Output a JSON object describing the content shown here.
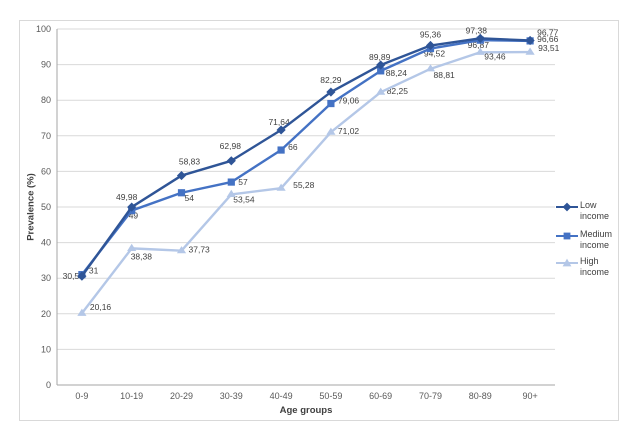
{
  "chart_data": {
    "type": "line",
    "title": "",
    "xlabel": "Age groups",
    "ylabel": "Prevalence (%)",
    "ylim": [
      0,
      100
    ],
    "ytick_step": 10,
    "grid": true,
    "legend_position": "right",
    "decimal_separator": ",",
    "categories": [
      "0-9",
      "10-19",
      "20-29",
      "30-39",
      "40-49",
      "50-59",
      "60-69",
      "70-79",
      "80-89",
      "90+"
    ],
    "series": [
      {
        "name": "Low income",
        "color": "#2F5597",
        "marker": "diamond",
        "values": [
          30.58,
          49.98,
          58.83,
          62.98,
          71.64,
          82.29,
          89.89,
          95.36,
          97.38,
          96.77
        ],
        "labels": [
          "30,58",
          "49,98",
          "58,83",
          "62,98",
          "71,64",
          "82,29",
          "89,89",
          "95,36",
          "97,38",
          "96,77"
        ],
        "label_pos": [
          {
            "dx": 2,
            "dy": 3,
            "anchor": "end"
          },
          {
            "dx": -5,
            "dy": -7,
            "anchor": "middle"
          },
          {
            "dx": 8,
            "dy": -11,
            "anchor": "middle"
          },
          {
            "dx": -1,
            "dy": -12,
            "anchor": "middle"
          },
          {
            "dx": -2,
            "dy": -5,
            "anchor": "middle"
          },
          {
            "dx": 0,
            "dy": -9,
            "anchor": "middle"
          },
          {
            "dx": -1,
            "dy": -5,
            "anchor": "middle"
          },
          {
            "dx": 0,
            "dy": -8,
            "anchor": "middle"
          },
          {
            "dx": -4,
            "dy": -5,
            "anchor": "middle"
          },
          {
            "dx": 7,
            "dy": -5,
            "anchor": "start"
          }
        ]
      },
      {
        "name": "Medium income",
        "color": "#4472C4",
        "marker": "square",
        "values": [
          31,
          49,
          54,
          57,
          66,
          79.06,
          88.24,
          94.52,
          96.87,
          96.66
        ],
        "labels": [
          "31",
          "49",
          "54",
          "57",
          "66",
          "79,06",
          "88,24",
          "94,52",
          "96,87",
          "96,66"
        ],
        "label_pos": [
          {
            "dx": 7,
            "dy": -1,
            "anchor": "start"
          },
          {
            "dx": -3,
            "dy": 8,
            "anchor": "start"
          },
          {
            "dx": 3,
            "dy": 8,
            "anchor": "start"
          },
          {
            "dx": 7,
            "dy": 3,
            "anchor": "start"
          },
          {
            "dx": 7,
            "dy": 0,
            "anchor": "start"
          },
          {
            "dx": 7,
            "dy": 0,
            "anchor": "start"
          },
          {
            "dx": 5,
            "dy": 5,
            "anchor": "start"
          },
          {
            "dx": 4,
            "dy": 8,
            "anchor": "middle"
          },
          {
            "dx": -2,
            "dy": 8,
            "anchor": "middle"
          },
          {
            "dx": 7,
            "dy": 1,
            "anchor": "start"
          }
        ]
      },
      {
        "name": "High income",
        "color": "#B4C7E7",
        "marker": "triangle",
        "values": [
          20.16,
          38.38,
          37.73,
          53.54,
          55.28,
          71.02,
          82.25,
          88.81,
          93.46,
          93.51
        ],
        "labels": [
          "20,16",
          "38,38",
          "37,73",
          "53,54",
          "55,28",
          "71,02",
          "82,25",
          "88,81",
          "93,46",
          "93,51"
        ],
        "label_pos": [
          {
            "dx": 8,
            "dy": -3,
            "anchor": "start"
          },
          {
            "dx": -1,
            "dy": 11,
            "anchor": "start"
          },
          {
            "dx": 7,
            "dy": 2,
            "anchor": "start"
          },
          {
            "dx": 2,
            "dy": 8,
            "anchor": "start"
          },
          {
            "dx": 12,
            "dy": 0,
            "anchor": "start"
          },
          {
            "dx": 7,
            "dy": 2,
            "anchor": "start"
          },
          {
            "dx": 6,
            "dy": 2,
            "anchor": "start"
          },
          {
            "dx": 3,
            "dy": 9,
            "anchor": "start"
          },
          {
            "dx": 4,
            "dy": 7,
            "anchor": "start"
          },
          {
            "dx": 8,
            "dy": -1,
            "anchor": "start"
          }
        ]
      }
    ]
  },
  "style": {
    "grid_color": "#D9D9D9",
    "axis_color": "#A6A6A6",
    "tick_label_color": "#595959",
    "data_label_color": "#404040",
    "background": "#FFFFFF"
  }
}
